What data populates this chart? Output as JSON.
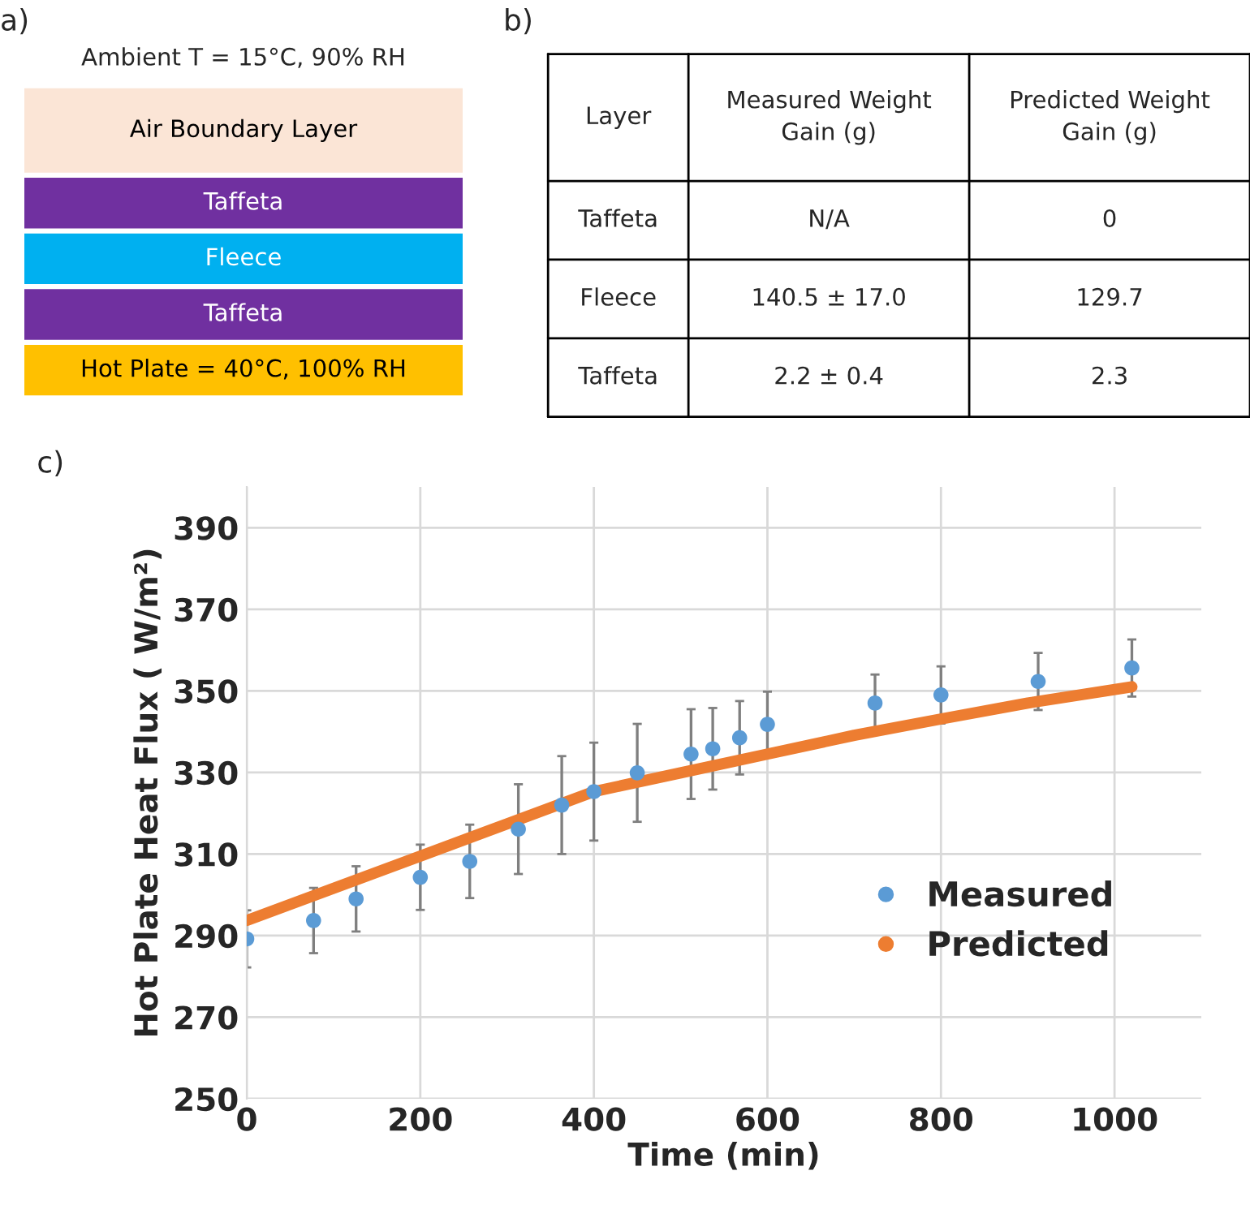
{
  "chart_data": [
    {
      "type": "other",
      "title": "a)",
      "annotations": [
        "Ambient T = 15°C, 90% RH",
        "Air Boundary Layer",
        "Taffeta",
        "Fleece",
        "Taffeta",
        "Hot Plate = 40°C, 100% RH"
      ],
      "colors": [
        null,
        "#fbe5d6",
        "#7030a0",
        "#00b0f0",
        "#7030a0",
        "#ffc000"
      ]
    },
    {
      "type": "other",
      "title": "b)",
      "annotations": [
        "Layer",
        "Measured Weight\nGain (g)",
        "Predicted Weight\nGain (g)",
        "Taffeta",
        "N/A",
        "0",
        "Fleece",
        "140.5 ± 17.0",
        "129.7",
        "Taffeta",
        "2.2 ± 0.4",
        "2.3"
      ]
    },
    {
      "type": "scatter",
      "title": "c)",
      "xlabel": "Time (min)",
      "ylabel": "Hot Plate Heat Flux ( W/m²)",
      "xlim": [
        0,
        1100
      ],
      "xticks": [
        0,
        200,
        400,
        600,
        800,
        1000
      ],
      "ylim": [
        250,
        400
      ],
      "yticks": [
        250,
        270,
        290,
        310,
        330,
        350,
        370,
        390
      ],
      "grid": true,
      "legend": "bottom right",
      "series": [
        {
          "name": "Measured",
          "type": "scatter",
          "color": "#5b9bd5",
          "marker": "circle",
          "x": [
            0,
            77,
            126,
            200,
            257,
            313,
            363,
            400,
            450,
            512,
            537,
            568,
            600,
            724,
            800,
            912,
            1020
          ],
          "values": [
            289.2,
            293.7,
            299,
            304.3,
            308.2,
            316.1,
            322,
            325.3,
            329.9,
            334.5,
            335.8,
            338.5,
            341.8,
            347,
            349,
            352.3,
            355.6
          ],
          "errors": [
            7,
            8,
            8,
            8,
            9,
            11,
            12,
            12,
            12,
            11,
            10,
            9,
            8,
            7,
            7,
            7,
            7
          ]
        },
        {
          "name": "Predicted",
          "type": "line",
          "color": "#ed7d31",
          "marker": "none",
          "x": [
            0,
            200,
            300,
            400,
            500,
            600,
            700,
            800,
            900,
            1020
          ],
          "values": [
            293.7,
            309.5,
            317.4,
            325.3,
            329.9,
            334.5,
            339.1,
            343.1,
            347,
            351
          ]
        }
      ]
    }
  ]
}
